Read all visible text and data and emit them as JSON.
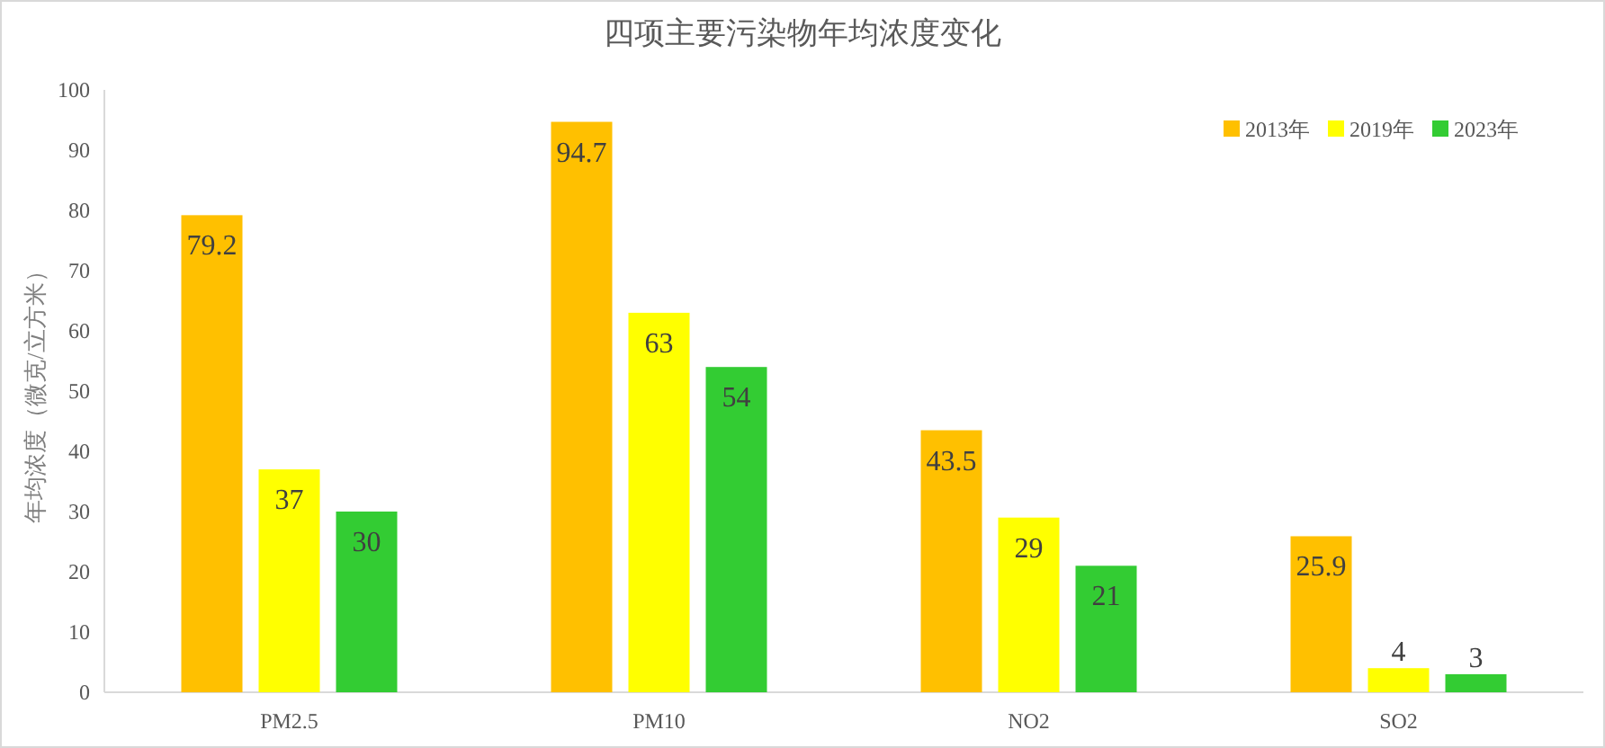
{
  "chart_data": {
    "type": "bar",
    "title": "四项主要污染物年均浓度变化",
    "ylabel": "年均浓度（微克/立方米）",
    "categories": [
      "PM2.5",
      "PM10",
      "NO2",
      "SO2"
    ],
    "series": [
      {
        "name": "2013年",
        "color": "#ffc000",
        "values": [
          79.2,
          94.7,
          43.5,
          25.9
        ]
      },
      {
        "name": "2019年",
        "color": "#ffff00",
        "values": [
          37,
          63,
          29,
          4
        ]
      },
      {
        "name": "2023年",
        "color": "#33cc33",
        "values": [
          30,
          54,
          21,
          3
        ]
      }
    ],
    "ylim": [
      0,
      100
    ],
    "yticks": [
      0,
      10,
      20,
      30,
      40,
      50,
      60,
      70,
      80,
      90,
      100
    ],
    "grid": false,
    "legend": "top right",
    "data_labels": true
  }
}
